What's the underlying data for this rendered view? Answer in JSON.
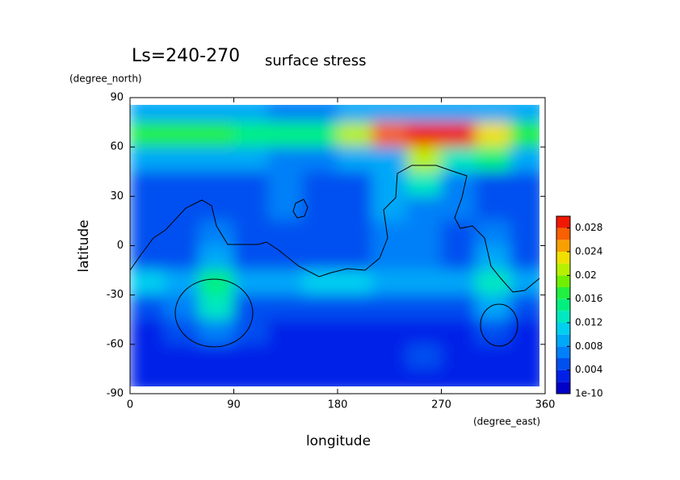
{
  "chart_data": {
    "type": "contour",
    "title": "Ls=240-270",
    "subtitle": "surface stress",
    "x_label": "longitude",
    "y_label": "latitude",
    "x_unit": "(degree_east)",
    "y_unit": "(degree_north)",
    "x": [
      15,
      45,
      75,
      105,
      135,
      165,
      195,
      225,
      255,
      285,
      315,
      345
    ],
    "y": [
      82.5,
      67.5,
      52.5,
      37.5,
      22.5,
      7.5,
      -7.5,
      -22.5,
      -37.5,
      -52.5,
      -67.5,
      -82.5
    ],
    "z": [
      [
        0.008,
        0.008,
        0.008,
        0.008,
        0.007,
        0.007,
        0.008,
        0.008,
        0.008,
        0.008,
        0.008,
        0.008
      ],
      [
        0.016,
        0.016,
        0.016,
        0.015,
        0.014,
        0.014,
        0.02,
        0.026,
        0.029,
        0.028,
        0.022,
        0.016
      ],
      [
        0.008,
        0.008,
        0.009,
        0.008,
        0.007,
        0.007,
        0.008,
        0.009,
        0.02,
        0.012,
        0.014,
        0.009
      ],
      [
        0.005,
        0.005,
        0.005,
        0.005,
        0.006,
        0.005,
        0.005,
        0.008,
        0.012,
        0.007,
        0.005,
        0.005
      ],
      [
        0.004,
        0.004,
        0.005,
        0.004,
        0.006,
        0.004,
        0.004,
        0.008,
        0.007,
        0.006,
        0.005,
        0.004
      ],
      [
        0.004,
        0.005,
        0.006,
        0.005,
        0.004,
        0.004,
        0.005,
        0.007,
        0.007,
        0.005,
        0.006,
        0.005
      ],
      [
        0.004,
        0.004,
        0.008,
        0.005,
        0.004,
        0.004,
        0.005,
        0.006,
        0.006,
        0.005,
        0.008,
        0.004
      ],
      [
        0.01,
        0.008,
        0.014,
        0.008,
        0.008,
        0.01,
        0.01,
        0.008,
        0.009,
        0.008,
        0.012,
        0.008
      ],
      [
        0.004,
        0.006,
        0.012,
        0.005,
        0.004,
        0.005,
        0.005,
        0.004,
        0.004,
        0.005,
        0.008,
        0.005
      ],
      [
        0.003,
        0.004,
        0.006,
        0.004,
        0.003,
        0.003,
        0.003,
        0.003,
        0.003,
        0.003,
        0.004,
        0.003
      ],
      [
        0.003,
        0.003,
        0.003,
        0.003,
        0.003,
        0.003,
        0.003,
        0.003,
        0.004,
        0.003,
        0.003,
        0.003
      ],
      [
        0.002,
        0.002,
        0.002,
        0.002,
        0.002,
        0.002,
        0.002,
        0.002,
        0.002,
        0.002,
        0.002,
        0.002
      ]
    ],
    "levels": [
      0,
      0.002,
      0.004,
      0.006,
      0.008,
      0.01,
      0.012,
      0.014,
      0.016,
      0.018,
      0.02,
      0.022,
      0.024,
      0.026,
      0.028,
      0.03
    ],
    "colors": [
      "#0000c8",
      "#0020e8",
      "#0050f0",
      "#0080f8",
      "#00a8f8",
      "#00d0f0",
      "#00e8c0",
      "#00f080",
      "#20f040",
      "#70f000",
      "#b8f000",
      "#f0e000",
      "#f8a000",
      "#f86000",
      "#f01800"
    ],
    "above_color": "#ffffff",
    "xlim": [
      0,
      360
    ],
    "ylim": [
      -90,
      90
    ],
    "xticks": [
      0,
      90,
      180,
      270,
      360
    ],
    "yticks": [
      -90,
      -60,
      -30,
      0,
      30,
      60,
      90
    ],
    "zlim": [
      0,
      0.03
    ],
    "colorbar_ticks": [
      {
        "value": 1e-10,
        "label": "1e-10"
      },
      0.004,
      0.008,
      0.012,
      0.016,
      0.02,
      0.024,
      0.028
    ]
  }
}
